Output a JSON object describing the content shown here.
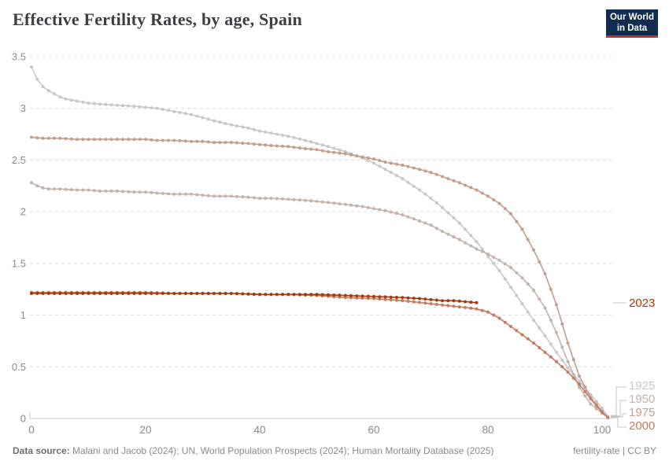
{
  "header": {
    "title": "Effective Fertility Rates, by age, Spain",
    "logo": {
      "line1": "Our World",
      "line2": "in Data"
    }
  },
  "footer": {
    "source_label": "Data source:",
    "source_text": " Malani and Jacob (2024); UN, World Population Prospects (2024); Human Mortality Database (2025)",
    "note": "fertility-rate | CC BY"
  },
  "chart_data": {
    "type": "line",
    "title": "Effective Fertility Rates, by age, Spain",
    "xlabel": "",
    "ylabel": "",
    "x_ticks": [
      0,
      20,
      40,
      60,
      80,
      100
    ],
    "y_ticks": [
      0,
      0.5,
      1,
      1.5,
      2,
      2.5,
      3,
      3.5
    ],
    "xlim": [
      0,
      101
    ],
    "ylim": [
      0,
      3.5
    ],
    "grid": "horizontal-dashed",
    "legend_position": "right-edge-labels",
    "marker": "circle-every-year",
    "colors": {
      "grid": "#dcdcdc",
      "axis": "#c8c8c8",
      "tick_text": "#8a8a8a",
      "connector": "#c4c4c4"
    },
    "series": [
      {
        "name": "1925",
        "color": "#c8c8c8",
        "points": [
          [
            0,
            3.4
          ],
          [
            1,
            3.28
          ],
          [
            2,
            3.21
          ],
          [
            3,
            3.17
          ],
          [
            4,
            3.14
          ],
          [
            5,
            3.11
          ],
          [
            6,
            3.09
          ],
          [
            8,
            3.07
          ],
          [
            10,
            3.05
          ],
          [
            12,
            3.04
          ],
          [
            15,
            3.03
          ],
          [
            18,
            3.02
          ],
          [
            20,
            3.01
          ],
          [
            22,
            3.0
          ],
          [
            25,
            2.97
          ],
          [
            28,
            2.94
          ],
          [
            30,
            2.91
          ],
          [
            32,
            2.88
          ],
          [
            35,
            2.84
          ],
          [
            38,
            2.81
          ],
          [
            40,
            2.78
          ],
          [
            42,
            2.76
          ],
          [
            45,
            2.73
          ],
          [
            48,
            2.69
          ],
          [
            50,
            2.66
          ],
          [
            52,
            2.63
          ],
          [
            55,
            2.58
          ],
          [
            58,
            2.52
          ],
          [
            60,
            2.47
          ],
          [
            62,
            2.41
          ],
          [
            65,
            2.32
          ],
          [
            68,
            2.21
          ],
          [
            70,
            2.13
          ],
          [
            72,
            2.04
          ],
          [
            75,
            1.89
          ],
          [
            78,
            1.71
          ],
          [
            80,
            1.57
          ],
          [
            82,
            1.43
          ],
          [
            84,
            1.27
          ],
          [
            86,
            1.11
          ],
          [
            88,
            0.95
          ],
          [
            90,
            0.8
          ],
          [
            92,
            0.64
          ],
          [
            94,
            0.49
          ],
          [
            96,
            0.36
          ],
          [
            98,
            0.23
          ],
          [
            100,
            0.1
          ],
          [
            101,
            0.02
          ]
        ]
      },
      {
        "name": "1950",
        "color": "#c5b3ab",
        "points": [
          [
            0,
            2.28
          ],
          [
            1,
            2.25
          ],
          [
            2,
            2.23
          ],
          [
            3,
            2.22
          ],
          [
            5,
            2.22
          ],
          [
            8,
            2.21
          ],
          [
            10,
            2.21
          ],
          [
            12,
            2.2
          ],
          [
            15,
            2.2
          ],
          [
            18,
            2.19
          ],
          [
            20,
            2.19
          ],
          [
            22,
            2.18
          ],
          [
            25,
            2.17
          ],
          [
            28,
            2.17
          ],
          [
            30,
            2.16
          ],
          [
            32,
            2.15
          ],
          [
            35,
            2.15
          ],
          [
            38,
            2.14
          ],
          [
            40,
            2.13
          ],
          [
            42,
            2.13
          ],
          [
            45,
            2.12
          ],
          [
            48,
            2.11
          ],
          [
            50,
            2.1
          ],
          [
            52,
            2.09
          ],
          [
            55,
            2.07
          ],
          [
            58,
            2.05
          ],
          [
            60,
            2.03
          ],
          [
            62,
            2.01
          ],
          [
            65,
            1.97
          ],
          [
            68,
            1.91
          ],
          [
            70,
            1.87
          ],
          [
            72,
            1.81
          ],
          [
            75,
            1.73
          ],
          [
            78,
            1.64
          ],
          [
            80,
            1.59
          ],
          [
            82,
            1.53
          ],
          [
            84,
            1.46
          ],
          [
            86,
            1.36
          ],
          [
            88,
            1.24
          ],
          [
            90,
            1.07
          ],
          [
            92,
            0.83
          ],
          [
            94,
            0.55
          ],
          [
            96,
            0.3
          ],
          [
            98,
            0.14
          ],
          [
            100,
            0.05
          ],
          [
            101,
            0.01
          ]
        ]
      },
      {
        "name": "1975",
        "color": "#c59d8c",
        "points": [
          [
            0,
            2.72
          ],
          [
            2,
            2.71
          ],
          [
            5,
            2.71
          ],
          [
            8,
            2.7
          ],
          [
            10,
            2.7
          ],
          [
            15,
            2.7
          ],
          [
            20,
            2.7
          ],
          [
            22,
            2.69
          ],
          [
            25,
            2.69
          ],
          [
            28,
            2.68
          ],
          [
            30,
            2.68
          ],
          [
            32,
            2.67
          ],
          [
            35,
            2.67
          ],
          [
            38,
            2.66
          ],
          [
            40,
            2.65
          ],
          [
            42,
            2.64
          ],
          [
            45,
            2.63
          ],
          [
            48,
            2.61
          ],
          [
            50,
            2.6
          ],
          [
            52,
            2.58
          ],
          [
            55,
            2.56
          ],
          [
            58,
            2.53
          ],
          [
            60,
            2.51
          ],
          [
            62,
            2.48
          ],
          [
            65,
            2.45
          ],
          [
            68,
            2.41
          ],
          [
            70,
            2.38
          ],
          [
            72,
            2.34
          ],
          [
            75,
            2.28
          ],
          [
            78,
            2.21
          ],
          [
            80,
            2.15
          ],
          [
            82,
            2.08
          ],
          [
            84,
            1.98
          ],
          [
            86,
            1.83
          ],
          [
            88,
            1.63
          ],
          [
            90,
            1.4
          ],
          [
            92,
            1.1
          ],
          [
            94,
            0.73
          ],
          [
            96,
            0.41
          ],
          [
            98,
            0.2
          ],
          [
            100,
            0.07
          ],
          [
            101,
            0.01
          ]
        ]
      },
      {
        "name": "2000",
        "color": "#c67c5f",
        "points": [
          [
            0,
            1.22
          ],
          [
            5,
            1.22
          ],
          [
            10,
            1.22
          ],
          [
            15,
            1.22
          ],
          [
            20,
            1.22
          ],
          [
            25,
            1.21
          ],
          [
            30,
            1.21
          ],
          [
            35,
            1.21
          ],
          [
            40,
            1.2
          ],
          [
            45,
            1.2
          ],
          [
            50,
            1.19
          ],
          [
            55,
            1.17
          ],
          [
            60,
            1.16
          ],
          [
            65,
            1.14
          ],
          [
            70,
            1.11
          ],
          [
            75,
            1.08
          ],
          [
            78,
            1.06
          ],
          [
            80,
            1.03
          ],
          [
            82,
            0.97
          ],
          [
            84,
            0.89
          ],
          [
            86,
            0.81
          ],
          [
            88,
            0.73
          ],
          [
            90,
            0.64
          ],
          [
            92,
            0.55
          ],
          [
            94,
            0.45
          ],
          [
            96,
            0.33
          ],
          [
            98,
            0.19
          ],
          [
            100,
            0.06
          ],
          [
            101,
            0.01
          ]
        ]
      },
      {
        "name": "2023",
        "color": "#a8390d",
        "points": [
          [
            0,
            1.21
          ],
          [
            5,
            1.21
          ],
          [
            10,
            1.21
          ],
          [
            15,
            1.21
          ],
          [
            20,
            1.21
          ],
          [
            25,
            1.21
          ],
          [
            30,
            1.21
          ],
          [
            35,
            1.21
          ],
          [
            40,
            1.2
          ],
          [
            45,
            1.2
          ],
          [
            50,
            1.2
          ],
          [
            55,
            1.19
          ],
          [
            60,
            1.18
          ],
          [
            65,
            1.17
          ],
          [
            68,
            1.16
          ],
          [
            70,
            1.15
          ],
          [
            72,
            1.14
          ],
          [
            74,
            1.14
          ],
          [
            76,
            1.13
          ],
          [
            78,
            1.12
          ]
        ]
      }
    ]
  }
}
